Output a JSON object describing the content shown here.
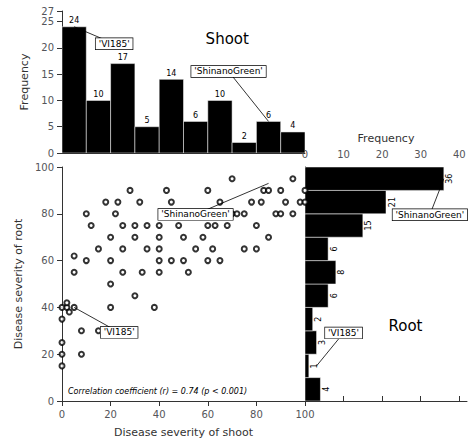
{
  "chart_data": [
    {
      "type": "bar",
      "title": "Shoot",
      "bins": [
        0,
        10,
        20,
        30,
        40,
        50,
        60,
        70,
        80,
        90,
        100
      ],
      "values": [
        24,
        10,
        17,
        5,
        14,
        6,
        10,
        2,
        6,
        4
      ],
      "color": "#000000",
      "data_labels": true,
      "ylabel": "Frequency",
      "xlim": [
        0,
        100
      ],
      "xticks": [
        0,
        20,
        40,
        60,
        80,
        100
      ],
      "ylim": [
        0,
        27
      ],
      "yticks": [
        0,
        5,
        10,
        15,
        20,
        25
      ],
      "tick_labels": "y",
      "grid": false,
      "annotations": [
        {
          "text": "'VI185'",
          "x": 5,
          "y": 24
        },
        {
          "text": "'ShinanoGreen'",
          "x": 85,
          "y": 6
        }
      ]
    },
    {
      "type": "scatter",
      "x": [
        0,
        0,
        0,
        0,
        0,
        2,
        2,
        3,
        5,
        5,
        5,
        8,
        8,
        10,
        10,
        12,
        15,
        15,
        18,
        20,
        20,
        20,
        20,
        22,
        23,
        25,
        25,
        25,
        25,
        28,
        30,
        30,
        30,
        32,
        33,
        35,
        35,
        38,
        40,
        40,
        40,
        40,
        40,
        42,
        43,
        45,
        45,
        48,
        50,
        50,
        52,
        55,
        55,
        58,
        60,
        60,
        60,
        62,
        63,
        65,
        65,
        68,
        70,
        70,
        72,
        75,
        75,
        78,
        80,
        80,
        82,
        83,
        85,
        85,
        88,
        90,
        90,
        92,
        95,
        95,
        98,
        100,
        100
      ],
      "values": [
        15,
        20,
        25,
        35,
        40,
        40,
        42,
        38,
        40,
        55,
        62,
        20,
        30,
        60,
        80,
        75,
        30,
        65,
        85,
        40,
        50,
        60,
        70,
        80,
        85,
        30,
        55,
        65,
        75,
        90,
        45,
        70,
        75,
        85,
        55,
        65,
        75,
        40,
        55,
        60,
        65,
        70,
        75,
        80,
        90,
        60,
        85,
        75,
        60,
        70,
        55,
        65,
        80,
        70,
        60,
        75,
        90,
        65,
        75,
        85,
        60,
        75,
        80,
        95,
        80,
        65,
        80,
        85,
        65,
        75,
        85,
        90,
        70,
        90,
        80,
        80,
        90,
        85,
        80,
        95,
        85,
        85,
        90
      ],
      "color": "#000000",
      "marker": "circle",
      "xlabel": "Disease severity of shoot",
      "ylabel": "Disease severity of root",
      "xlim": [
        0,
        100
      ],
      "xticks": [
        0,
        20,
        40,
        60,
        80,
        100
      ],
      "ylim": [
        0,
        100
      ],
      "yticks": [
        0,
        20,
        40,
        60,
        80,
        100
      ],
      "grid": false,
      "annotations": [
        {
          "text": "Correlation coefficient (r) = 0.74 (p < 0.001)"
        },
        {
          "text": "'VI185'",
          "x": 5,
          "y": 40
        },
        {
          "text": "'ShinanoGreen'",
          "x": 85,
          "y": 93
        }
      ]
    },
    {
      "type": "bar",
      "orientation": "horizontal",
      "title": "Root",
      "bins": [
        0,
        10,
        20,
        30,
        40,
        50,
        60,
        70,
        80,
        90,
        100
      ],
      "values": [
        4,
        1,
        3,
        2,
        6,
        8,
        6,
        15,
        21,
        36
      ],
      "color": "#000000",
      "data_labels": true,
      "xlabel": "Frequency",
      "xlim": [
        0,
        42
      ],
      "xticks": [
        0,
        10,
        20,
        30,
        40
      ],
      "ylim": [
        0,
        100
      ],
      "yticks": [
        0,
        20,
        40,
        60,
        80,
        100
      ],
      "tick_labels": "x",
      "grid": false,
      "annotations": [
        {
          "text": "'ShinanoGreen'",
          "x": 36,
          "y": 95
        },
        {
          "text": "'VI185'",
          "x": 3,
          "y": 15
        }
      ]
    }
  ]
}
